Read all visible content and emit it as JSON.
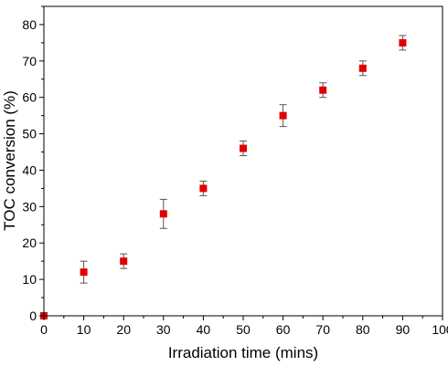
{
  "chart_data": {
    "type": "scatter",
    "title": "",
    "xlabel": "Irradiation time (mins)",
    "ylabel": "TOC conversion (%)",
    "xlim": [
      0,
      100
    ],
    "ylim": [
      0,
      85
    ],
    "xticks": [
      0,
      10,
      20,
      30,
      40,
      50,
      60,
      70,
      80,
      90,
      100
    ],
    "yticks": [
      0,
      10,
      20,
      30,
      40,
      50,
      60,
      70,
      80
    ],
    "grid": false,
    "legend": "none",
    "marker_color": "#e00000",
    "errorbar_color": "#555555",
    "series": [
      {
        "x": [
          0,
          10,
          20,
          30,
          40,
          50,
          60,
          70,
          80,
          90
        ],
        "y": [
          0,
          12,
          15,
          28,
          35,
          46,
          55,
          62,
          68,
          75
        ],
        "err": [
          0,
          3,
          2,
          4,
          2,
          2,
          3,
          2,
          2,
          2
        ]
      }
    ]
  }
}
